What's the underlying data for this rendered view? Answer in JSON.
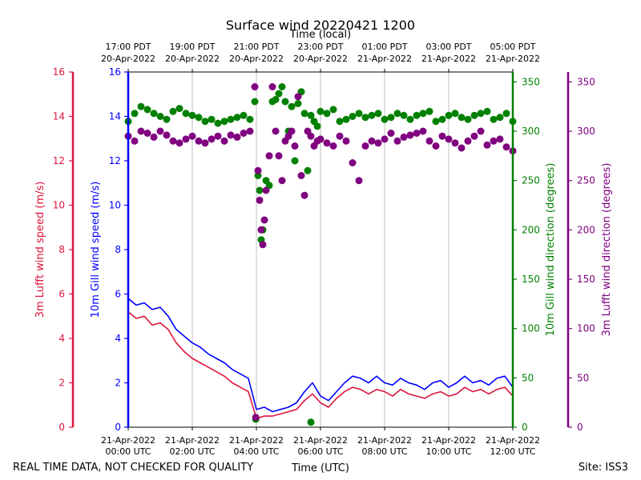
{
  "chart_data": {
    "type": "line+scatter",
    "title": "Surface wind 20220421 1200",
    "top_xlabel": "Time (local)",
    "xlabel": "Time (UTC)",
    "xlim_hours": [
      0,
      12
    ],
    "bottom_ticks": [
      {
        "h": 0,
        "date": "21-Apr-2022",
        "time": "00:00 UTC"
      },
      {
        "h": 2,
        "date": "21-Apr-2022",
        "time": "02:00 UTC"
      },
      {
        "h": 4,
        "date": "21-Apr-2022",
        "time": "04:00 UTC"
      },
      {
        "h": 6,
        "date": "21-Apr-2022",
        "time": "06:00 UTC"
      },
      {
        "h": 8,
        "date": "21-Apr-2022",
        "time": "08:00 UTC"
      },
      {
        "h": 10,
        "date": "21-Apr-2022",
        "time": "10:00 UTC"
      },
      {
        "h": 12,
        "date": "21-Apr-2022",
        "time": "12:00 UTC"
      }
    ],
    "top_ticks": [
      {
        "h": 0,
        "time": "17:00 PDT",
        "date": "20-Apr-2022"
      },
      {
        "h": 2,
        "time": "19:00 PDT",
        "date": "20-Apr-2022"
      },
      {
        "h": 4,
        "time": "21:00 PDT",
        "date": "20-Apr-2022"
      },
      {
        "h": 6,
        "time": "23:00 PDT",
        "date": "20-Apr-2022"
      },
      {
        "h": 8,
        "time": "01:00 PDT",
        "date": "21-Apr-2022"
      },
      {
        "h": 10,
        "time": "03:00 PDT",
        "date": "21-Apr-2022"
      },
      {
        "h": 12,
        "time": "05:00 PDT",
        "date": "21-Apr-2022"
      }
    ],
    "axes": {
      "gill_speed": {
        "label": "10m Gill wind speed (m/s)",
        "ylim": [
          0,
          16
        ],
        "ticks": [
          0,
          2,
          4,
          6,
          8,
          10,
          12,
          14,
          16
        ],
        "color": "#0000ff"
      },
      "lufft_speed": {
        "label": "3m Lufft wind speed (m/s)",
        "ylim": [
          0,
          16
        ],
        "ticks": [
          0,
          2,
          4,
          6,
          8,
          10,
          12,
          14,
          16
        ],
        "color": "#dc143c"
      },
      "gill_dir": {
        "label": "10m Gill wind direction (degrees)",
        "ylim": [
          0,
          360
        ],
        "ticks": [
          0,
          50,
          100,
          150,
          200,
          250,
          300,
          350
        ],
        "color": "#008000"
      },
      "lufft_dir": {
        "label": "3m Lufft wind direction (degrees)",
        "ylim": [
          0,
          360
        ],
        "ticks": [
          0,
          50,
          100,
          150,
          200,
          250,
          300,
          350
        ],
        "color": "#800080"
      }
    },
    "series": [
      {
        "name": "10m Gill wind speed",
        "kind": "line",
        "axis": "gill_speed",
        "color": "#0000ff",
        "x": [
          0,
          0.25,
          0.5,
          0.75,
          1,
          1.25,
          1.5,
          1.75,
          2,
          2.25,
          2.5,
          2.75,
          3,
          3.25,
          3.5,
          3.75,
          4,
          4.25,
          4.5,
          4.75,
          5,
          5.25,
          5.5,
          5.75,
          6,
          6.25,
          6.5,
          6.75,
          7,
          7.25,
          7.5,
          7.75,
          8,
          8.25,
          8.5,
          8.75,
          9,
          9.25,
          9.5,
          9.75,
          10,
          10.25,
          10.5,
          10.75,
          11,
          11.25,
          11.5,
          11.75,
          12
        ],
        "values": [
          5.8,
          5.5,
          5.6,
          5.3,
          5.4,
          5.0,
          4.4,
          4.1,
          3.8,
          3.6,
          3.3,
          3.1,
          2.9,
          2.6,
          2.4,
          2.2,
          0.8,
          0.9,
          0.7,
          0.8,
          0.9,
          1.1,
          1.6,
          2.0,
          1.4,
          1.2,
          1.6,
          2.0,
          2.3,
          2.2,
          2.0,
          2.3,
          2.0,
          1.9,
          2.2,
          2.0,
          1.9,
          1.7,
          2.0,
          2.1,
          1.8,
          2.0,
          2.3,
          2.0,
          2.1,
          1.9,
          2.2,
          2.3,
          1.8
        ]
      },
      {
        "name": "3m Lufft wind speed",
        "kind": "line",
        "axis": "lufft_speed",
        "color": "#dc143c",
        "x": [
          0,
          0.25,
          0.5,
          0.75,
          1,
          1.25,
          1.5,
          1.75,
          2,
          2.25,
          2.5,
          2.75,
          3,
          3.25,
          3.5,
          3.75,
          4,
          4.25,
          4.5,
          4.75,
          5,
          5.25,
          5.5,
          5.75,
          6,
          6.25,
          6.5,
          6.75,
          7,
          7.25,
          7.5,
          7.75,
          8,
          8.25,
          8.5,
          8.75,
          9,
          9.25,
          9.5,
          9.75,
          10,
          10.25,
          10.5,
          10.75,
          11,
          11.25,
          11.5,
          11.75,
          12
        ],
        "values": [
          5.2,
          4.9,
          5.0,
          4.6,
          4.7,
          4.4,
          3.8,
          3.4,
          3.1,
          2.9,
          2.7,
          2.5,
          2.3,
          2.0,
          1.8,
          1.6,
          0.4,
          0.5,
          0.5,
          0.6,
          0.7,
          0.8,
          1.2,
          1.5,
          1.1,
          0.9,
          1.3,
          1.6,
          1.8,
          1.7,
          1.5,
          1.7,
          1.6,
          1.4,
          1.7,
          1.5,
          1.4,
          1.3,
          1.5,
          1.6,
          1.4,
          1.5,
          1.8,
          1.6,
          1.7,
          1.5,
          1.7,
          1.8,
          1.4
        ]
      },
      {
        "name": "10m Gill wind direction",
        "kind": "scatter",
        "axis": "gill_dir",
        "color": "#008000",
        "x": [
          0,
          0.2,
          0.4,
          0.6,
          0.8,
          1.0,
          1.2,
          1.4,
          1.6,
          1.8,
          2.0,
          2.2,
          2.4,
          2.6,
          2.8,
          3.0,
          3.2,
          3.4,
          3.6,
          3.8,
          3.95,
          4.05,
          4.1,
          4.15,
          4.2,
          4.3,
          4.4,
          4.5,
          4.6,
          4.7,
          4.8,
          4.9,
          5.0,
          5.1,
          5.2,
          5.3,
          5.4,
          5.5,
          5.6,
          5.7,
          5.8,
          5.9,
          6.0,
          6.2,
          6.4,
          6.6,
          6.8,
          7.0,
          7.2,
          7.4,
          7.6,
          7.8,
          8.0,
          8.2,
          8.4,
          8.6,
          8.8,
          9.0,
          9.2,
          9.4,
          9.6,
          9.8,
          10.0,
          10.2,
          10.4,
          10.6,
          10.8,
          11.0,
          11.2,
          11.4,
          11.6,
          11.8,
          12.0,
          3.98,
          5.7
        ],
        "values": [
          310,
          318,
          325,
          322,
          318,
          315,
          312,
          320,
          323,
          318,
          316,
          314,
          310,
          312,
          308,
          310,
          312,
          314,
          316,
          312,
          330,
          255,
          240,
          190,
          200,
          250,
          245,
          330,
          332,
          338,
          345,
          330,
          300,
          325,
          270,
          328,
          340,
          318,
          260,
          316,
          310,
          305,
          320,
          318,
          322,
          310,
          312,
          315,
          318,
          314,
          316,
          318,
          312,
          314,
          318,
          316,
          312,
          316,
          318,
          320,
          310,
          312,
          316,
          318,
          314,
          312,
          316,
          318,
          320,
          312,
          314,
          318,
          310,
          8,
          5
        ]
      },
      {
        "name": "3m Lufft wind direction",
        "kind": "scatter",
        "axis": "lufft_dir",
        "color": "#800080",
        "x": [
          0,
          0.2,
          0.4,
          0.6,
          0.8,
          1.0,
          1.2,
          1.4,
          1.6,
          1.8,
          2.0,
          2.2,
          2.4,
          2.6,
          2.8,
          3.0,
          3.2,
          3.4,
          3.6,
          3.8,
          3.95,
          4.05,
          4.1,
          4.15,
          4.2,
          4.25,
          4.3,
          4.4,
          4.5,
          4.6,
          4.7,
          4.8,
          4.9,
          5.0,
          5.1,
          5.2,
          5.3,
          5.4,
          5.5,
          5.6,
          5.7,
          5.8,
          5.9,
          6.0,
          6.2,
          6.4,
          6.6,
          6.8,
          7.0,
          7.2,
          7.4,
          7.6,
          7.8,
          8.0,
          8.2,
          8.4,
          8.6,
          8.8,
          9.0,
          9.2,
          9.4,
          9.6,
          9.8,
          10.0,
          10.2,
          10.4,
          10.6,
          10.8,
          11.0,
          11.2,
          11.4,
          11.6,
          11.8,
          12.0,
          3.98
        ],
        "values": [
          295,
          290,
          300,
          298,
          294,
          300,
          296,
          290,
          288,
          292,
          295,
          290,
          288,
          292,
          295,
          290,
          296,
          294,
          298,
          300,
          345,
          260,
          230,
          200,
          185,
          210,
          240,
          275,
          345,
          300,
          275,
          250,
          290,
          295,
          300,
          285,
          335,
          255,
          235,
          300,
          295,
          285,
          290,
          292,
          288,
          285,
          295,
          290,
          268,
          250,
          285,
          290,
          288,
          292,
          298,
          290,
          294,
          296,
          298,
          300,
          290,
          285,
          295,
          292,
          288,
          283,
          290,
          295,
          300,
          286,
          290,
          292,
          284,
          280,
          10
        ]
      }
    ],
    "footer_left": "REAL TIME DATA, NOT CHECKED FOR QUALITY",
    "footer_right": "Site: ISS3"
  }
}
